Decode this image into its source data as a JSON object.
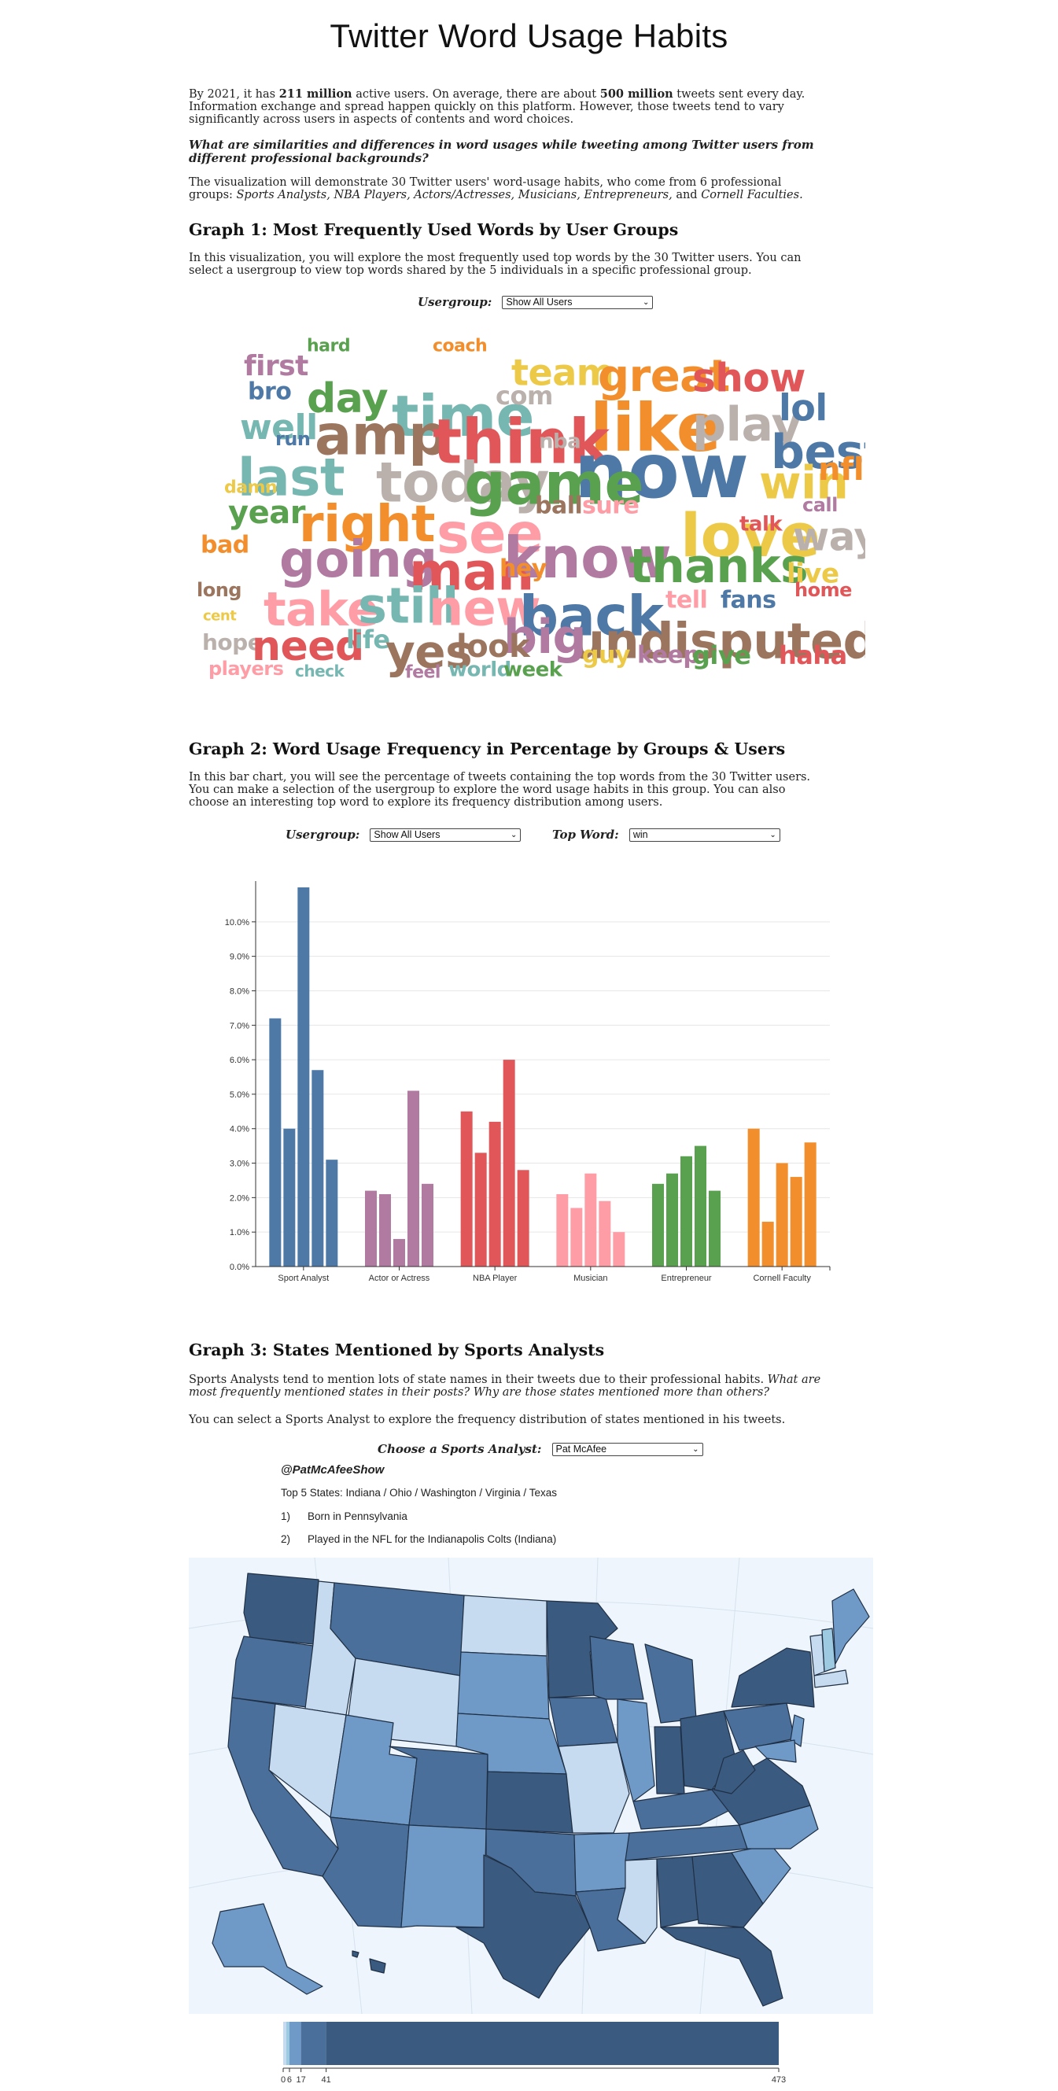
{
  "title": "Twitter Word Usage Habits",
  "intro": {
    "p1_a": "By 2021, it has ",
    "p1_b": "211 million",
    "p1_c": " active users. On average, there are about ",
    "p1_d": "500 million",
    "p1_e": " tweets sent every day. Information exchange and spread happen quickly on this platform. However, those tweets tend to vary significantly across users in aspects of contents and word choices.",
    "question": "What are similarities and differences in word usages while tweeting among Twitter users from different professional backgrounds?",
    "desc_a": "The visualization will demonstrate 30 Twitter users' word-usage habits, who come from 6 professional groups: ",
    "desc_b": "Sports Analysts, NBA Players, Actors/Actresses, Musicians, Entrepreneurs,",
    "desc_c": " and ",
    "desc_d": "Cornell Faculties."
  },
  "graph1": {
    "heading": "Graph 1: Most Frequently Used Words by User Groups",
    "desc": "In this visualization, you will explore the most frequently used top words by the 30 Twitter users. You can select a usergroup to view top words shared by the 5 individuals in a specific professional group.",
    "usergroup_label": "Usergroup:",
    "usergroup_value": "Show All Users"
  },
  "graph2": {
    "heading": "Graph 2: Word Usage Frequency in Percentage by Groups & Users",
    "desc": "In this bar chart, you will see the percentage of tweets containing the top words from the 30 Twitter users. You can make a selection of the usergroup to explore the word usage habits in this group. You can also choose an interesting top word to explore its frequency distribution among users.",
    "usergroup_label": "Usergroup:",
    "usergroup_value": "Show All Users",
    "topword_label": "Top Word:",
    "topword_value": "win"
  },
  "graph3": {
    "heading": "Graph 3: States Mentioned by Sports Analysts",
    "desc_a": "Sports Analysts tend to mention lots of state names in their tweets due to their professional habits. ",
    "desc_b": "What are most frequently mentioned states in their posts? Why are those states mentioned more than others?",
    "desc2": "You can select a Sports Analyst to explore the frequency distribution of states mentioned in his tweets.",
    "analyst_label": "Choose a Sports Analyst:",
    "analyst_value": "Pat McAfee",
    "handle": "@PatMcAfeeShow",
    "top5": "Top 5 States: Indiana / Ohio / Washington / Virginia / Texas",
    "notes": [
      {
        "num": "1)",
        "text": "Born in Pennsylvania"
      },
      {
        "num": "2)",
        "text": "Played in the NFL for the Indianapolis Colts (Indiana)"
      }
    ]
  },
  "colors": {
    "blue": "#4e79a7",
    "purple": "#b07aa1",
    "red": "#e15759",
    "pink": "#ff9da7",
    "green": "#59a14f",
    "orange": "#f28e2b",
    "yellow": "#edc948",
    "teal": "#76b7b2",
    "brown": "#9c755f",
    "gray": "#bab0ac",
    "map_ocean": "#eef5fc"
  },
  "wordcloud": [
    {
      "text": "first",
      "color": "purple"
    },
    {
      "text": "hard",
      "color": "green"
    },
    {
      "text": "coach",
      "color": "orange"
    },
    {
      "text": "team",
      "color": "yellow"
    },
    {
      "text": "great",
      "color": "orange"
    },
    {
      "text": "show",
      "color": "red"
    },
    {
      "text": "bro",
      "color": "blue"
    },
    {
      "text": "day",
      "color": "green"
    },
    {
      "text": "time",
      "color": "teal"
    },
    {
      "text": "com",
      "color": "gray"
    },
    {
      "text": "like",
      "color": "orange"
    },
    {
      "text": "play",
      "color": "gray"
    },
    {
      "text": "lol",
      "color": "blue"
    },
    {
      "text": "well",
      "color": "teal"
    },
    {
      "text": "amp",
      "color": "brown"
    },
    {
      "text": "think",
      "color": "red"
    },
    {
      "text": "now",
      "color": "blue"
    },
    {
      "text": "best",
      "color": "blue"
    },
    {
      "text": "run",
      "color": "blue"
    },
    {
      "text": "last",
      "color": "teal"
    },
    {
      "text": "nba",
      "color": "gray"
    },
    {
      "text": "today",
      "color": "gray"
    },
    {
      "text": "game",
      "color": "green"
    },
    {
      "text": "win",
      "color": "yellow"
    },
    {
      "text": "nfl",
      "color": "orange"
    },
    {
      "text": "damn",
      "color": "yellow"
    },
    {
      "text": "year",
      "color": "green"
    },
    {
      "text": "right",
      "color": "orange"
    },
    {
      "text": "see",
      "color": "pink"
    },
    {
      "text": "ball",
      "color": "brown"
    },
    {
      "text": "sure",
      "color": "pink"
    },
    {
      "text": "love",
      "color": "yellow"
    },
    {
      "text": "call",
      "color": "purple"
    },
    {
      "text": "talk",
      "color": "red"
    },
    {
      "text": "way",
      "color": "gray"
    },
    {
      "text": "bad",
      "color": "orange"
    },
    {
      "text": "going",
      "color": "purple"
    },
    {
      "text": "man",
      "color": "red"
    },
    {
      "text": "know",
      "color": "purple"
    },
    {
      "text": "thanks",
      "color": "green"
    },
    {
      "text": "hey",
      "color": "orange"
    },
    {
      "text": "live",
      "color": "yellow"
    },
    {
      "text": "long",
      "color": "brown"
    },
    {
      "text": "take",
      "color": "pink"
    },
    {
      "text": "still",
      "color": "teal"
    },
    {
      "text": "new",
      "color": "pink"
    },
    {
      "text": "back",
      "color": "blue"
    },
    {
      "text": "tell",
      "color": "pink"
    },
    {
      "text": "fans",
      "color": "blue"
    },
    {
      "text": "home",
      "color": "red"
    },
    {
      "text": "cent",
      "color": "yellow"
    },
    {
      "text": "undisputed",
      "color": "brown"
    },
    {
      "text": "big",
      "color": "purple"
    },
    {
      "text": "hope",
      "color": "gray"
    },
    {
      "text": "need",
      "color": "red"
    },
    {
      "text": "life",
      "color": "teal"
    },
    {
      "text": "yes",
      "color": "brown"
    },
    {
      "text": "look",
      "color": "brown"
    },
    {
      "text": "guy",
      "color": "yellow"
    },
    {
      "text": "keep",
      "color": "purple"
    },
    {
      "text": "give",
      "color": "green"
    },
    {
      "text": "haha",
      "color": "red"
    },
    {
      "text": "players",
      "color": "pink"
    },
    {
      "text": "check",
      "color": "teal"
    },
    {
      "text": "feel",
      "color": "purple"
    },
    {
      "text": "world",
      "color": "teal"
    },
    {
      "text": "week",
      "color": "green"
    }
  ],
  "chart_data": {
    "type": "bar",
    "categories": [
      "Sport Analyst",
      "Actor or Actress",
      "NBA Player",
      "Musician",
      "Entrepreneur",
      "Cornell Faculty"
    ],
    "values_by_group": [
      [
        7.2,
        4.0,
        11.0,
        5.7,
        3.1
      ],
      [
        2.2,
        2.1,
        0.8,
        5.1,
        2.4
      ],
      [
        4.5,
        3.3,
        4.2,
        6.0,
        2.8
      ],
      [
        2.1,
        1.7,
        2.7,
        1.9,
        1.0
      ],
      [
        2.4,
        2.7,
        3.2,
        3.5,
        2.2
      ],
      [
        4.0,
        1.3,
        3.0,
        2.6,
        3.6
      ]
    ],
    "group_colors": [
      "blue",
      "purple",
      "red",
      "pink",
      "green",
      "orange"
    ],
    "ylim": [
      0,
      11
    ],
    "yticks": [
      "0.0%",
      "1.0%",
      "2.0%",
      "3.0%",
      "4.0%",
      "5.0%",
      "6.0%",
      "7.0%",
      "8.0%",
      "9.0%",
      "10.0%"
    ],
    "grid": true
  },
  "legend": {
    "ticks": [
      "0",
      "6",
      "17",
      "41",
      "473"
    ],
    "tick_values": [
      0,
      6,
      17,
      41,
      473
    ],
    "colors": [
      "#c6dbef",
      "#9ecae1",
      "#6f9ac8",
      "#4a6f9a",
      "#3a5a80"
    ]
  }
}
